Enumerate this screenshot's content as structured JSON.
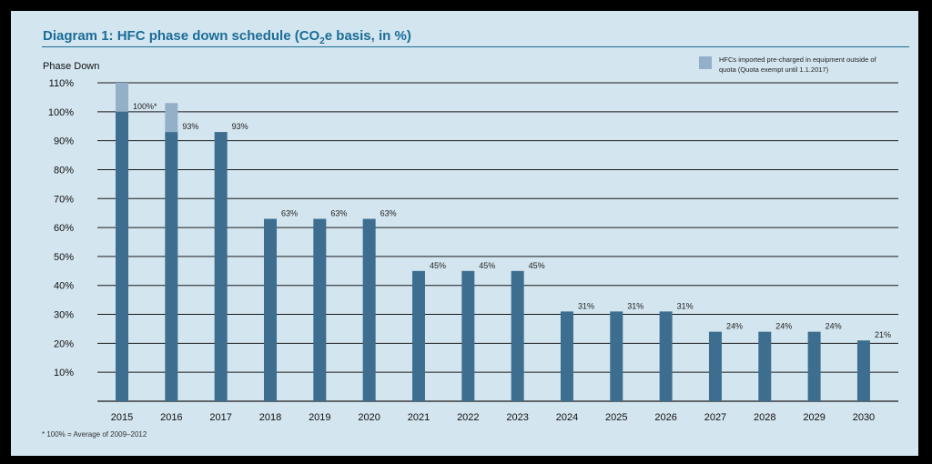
{
  "title": {
    "prefix": "Diagram 1: HFC phase down schedule (CO",
    "sub": "2",
    "suffix": "e basis, in %)"
  },
  "footnote": "* 100% = Average of 2009–2012",
  "colors": {
    "bar": "#3d6e8f",
    "preCharged": "#94afc8",
    "background": "#d3e5ef",
    "title": "#1b6d97",
    "grid": "#1a1a1a"
  },
  "chart_data": {
    "type": "bar",
    "title": "Diagram 1: HFC phase down schedule (CO2e basis, in %)",
    "ylabel": "Phase Down",
    "xlabel": "",
    "ylim": [
      0,
      110
    ],
    "yticks": [
      10,
      20,
      30,
      40,
      50,
      60,
      70,
      80,
      90,
      100,
      110
    ],
    "ytick_labels": [
      "10%",
      "20%",
      "30%",
      "40%",
      "50%",
      "60%",
      "70%",
      "80%",
      "90%",
      "100%",
      "110%"
    ],
    "grid": true,
    "legend_position": "top-right",
    "categories": [
      "2015",
      "2016",
      "2017",
      "2018",
      "2019",
      "2020",
      "2021",
      "2022",
      "2023",
      "2024",
      "2025",
      "2026",
      "2027",
      "2028",
      "2029",
      "2030"
    ],
    "series": [
      {
        "values": [
          100,
          93,
          93,
          63,
          63,
          63,
          45,
          45,
          45,
          31,
          31,
          31,
          24,
          24,
          24,
          21
        ],
        "color": "#3d6e8f"
      },
      {
        "name": "HFCs imported pre-charged in equipment outside of quota (Quota exempt until 1.1.2017)",
        "values": [
          10,
          10,
          0,
          0,
          0,
          0,
          0,
          0,
          0,
          0,
          0,
          0,
          0,
          0,
          0,
          0
        ],
        "color": "#94afc8"
      }
    ],
    "data_labels": [
      "100%*",
      "93%",
      "93%",
      "63%",
      "63%",
      "63%",
      "45%",
      "45%",
      "45%",
      "31%",
      "31%",
      "31%",
      "24%",
      "24%",
      "24%",
      "21%"
    ]
  }
}
